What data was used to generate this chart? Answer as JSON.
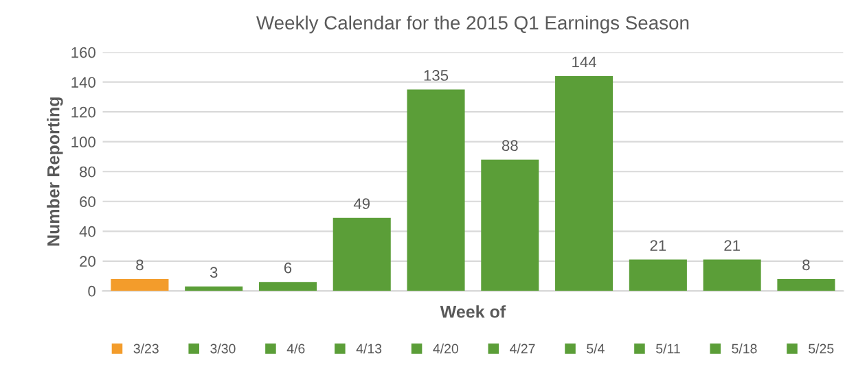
{
  "chart_data": {
    "type": "bar",
    "title": "Weekly Calendar for the 2015 Q1 Earnings Season",
    "xlabel": "Week of",
    "ylabel": "Number Reporting",
    "stacked": true,
    "categories": [
      null,
      null,
      null,
      null,
      null,
      null,
      null,
      null,
      null,
      null
    ],
    "series": [
      {
        "name": "3/23",
        "color": "#f39c2b",
        "values": [
          8,
          null,
          null,
          null,
          null,
          null,
          null,
          null,
          null,
          null
        ]
      },
      {
        "name": "3/30",
        "color": "#5b9e38",
        "values": [
          null,
          3,
          null,
          null,
          null,
          null,
          null,
          null,
          null,
          null
        ]
      },
      {
        "name": "4/6",
        "color": "#5b9e38",
        "values": [
          null,
          null,
          6,
          null,
          null,
          null,
          null,
          null,
          null,
          null
        ]
      },
      {
        "name": "4/13",
        "color": "#5b9e38",
        "values": [
          null,
          null,
          null,
          49,
          null,
          null,
          null,
          null,
          null,
          null
        ]
      },
      {
        "name": "4/20",
        "color": "#5b9e38",
        "values": [
          null,
          null,
          null,
          null,
          135,
          null,
          null,
          null,
          null,
          null
        ]
      },
      {
        "name": "4/27",
        "color": "#5b9e38",
        "values": [
          null,
          null,
          null,
          null,
          null,
          88,
          null,
          null,
          null,
          null
        ]
      },
      {
        "name": "5/4",
        "color": "#5b9e38",
        "values": [
          null,
          null,
          null,
          null,
          null,
          null,
          144,
          null,
          null,
          null
        ]
      },
      {
        "name": "5/11",
        "color": "#5b9e38",
        "values": [
          null,
          null,
          null,
          null,
          null,
          null,
          null,
          21,
          null,
          null
        ]
      },
      {
        "name": "5/18",
        "color": "#5b9e38",
        "values": [
          null,
          null,
          null,
          null,
          null,
          null,
          null,
          null,
          21,
          null
        ]
      },
      {
        "name": "5/25",
        "color": "#5b9e38",
        "values": [
          null,
          null,
          null,
          null,
          null,
          null,
          null,
          null,
          null,
          8
        ]
      }
    ],
    "ylim": [
      0,
      160
    ],
    "yticks": [
      0,
      20,
      40,
      60,
      80,
      100,
      120,
      140,
      160
    ],
    "grid": "y",
    "data_labels": true,
    "legend": "bottom",
    "tick_labels": "y"
  }
}
